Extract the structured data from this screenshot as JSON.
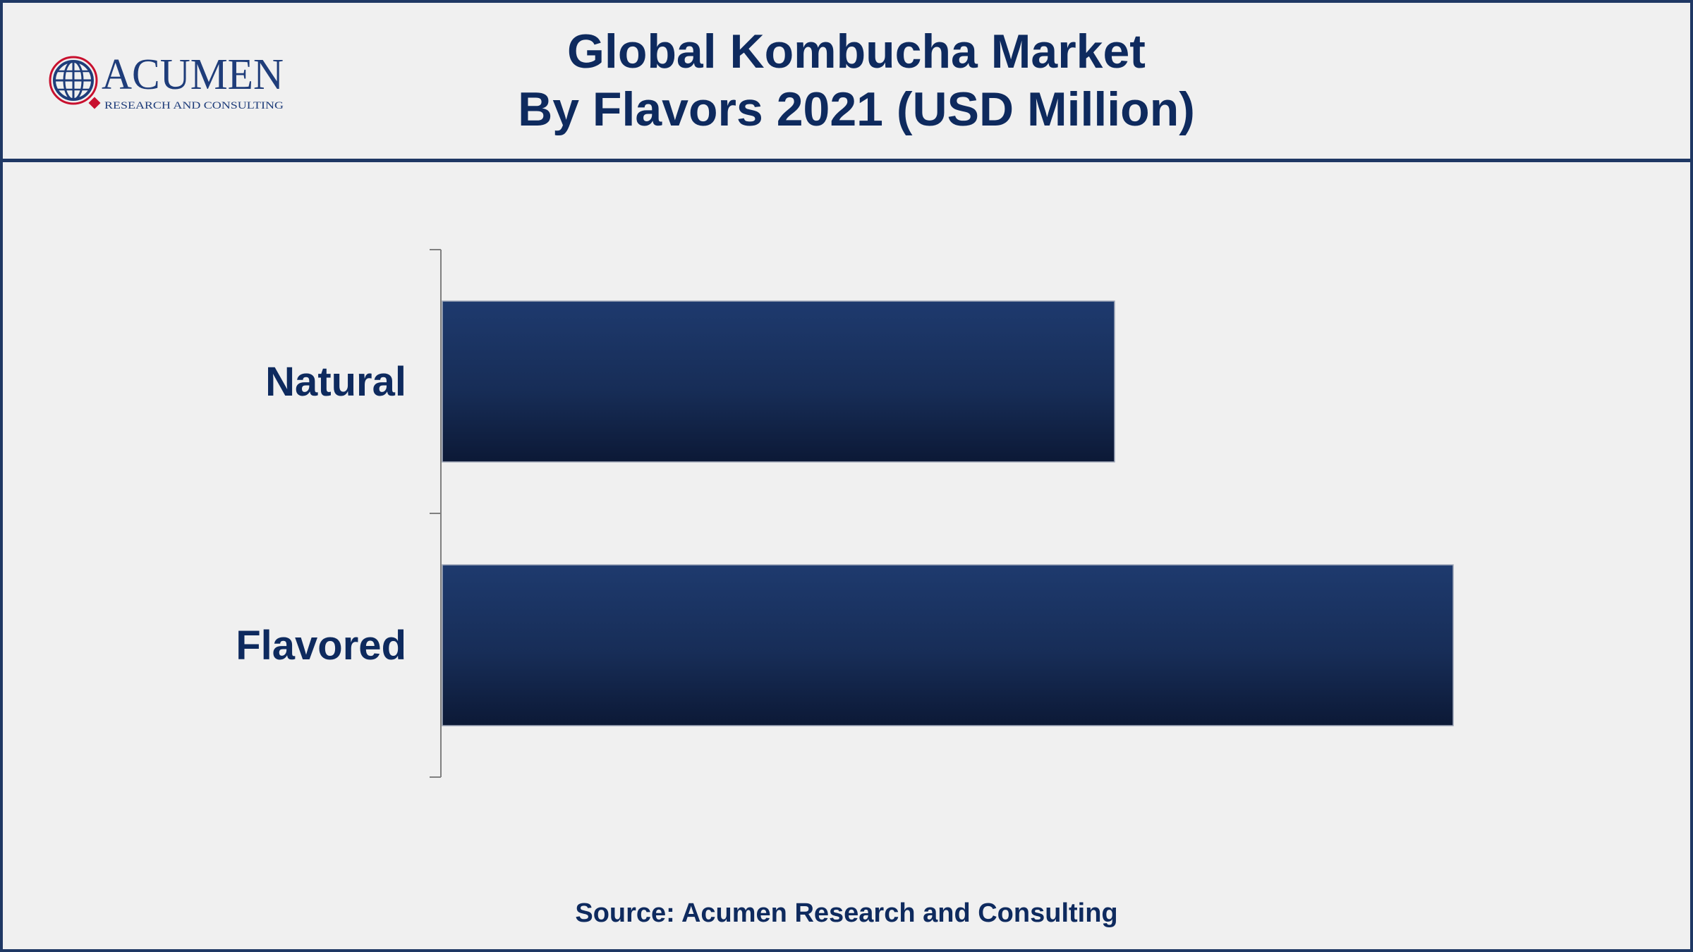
{
  "header": {
    "title_line1": "Global Kombucha Market",
    "title_line2": "By Flavors 2021 (USD Million)"
  },
  "logo": {
    "name": "ACUMEN",
    "tagline": "RESEARCH AND CONSULTING"
  },
  "chart_data": {
    "type": "bar",
    "orientation": "horizontal",
    "categories": [
      "Natural",
      "Flavored"
    ],
    "values": [
      0.665,
      1.0
    ],
    "value_units": "fraction of longest bar",
    "value_axis_labels": "none shown",
    "grid": false,
    "legend": "none",
    "bar_color": "#1a3366"
  },
  "footer": {
    "source": "Source: Acumen Research and Consulting"
  }
}
